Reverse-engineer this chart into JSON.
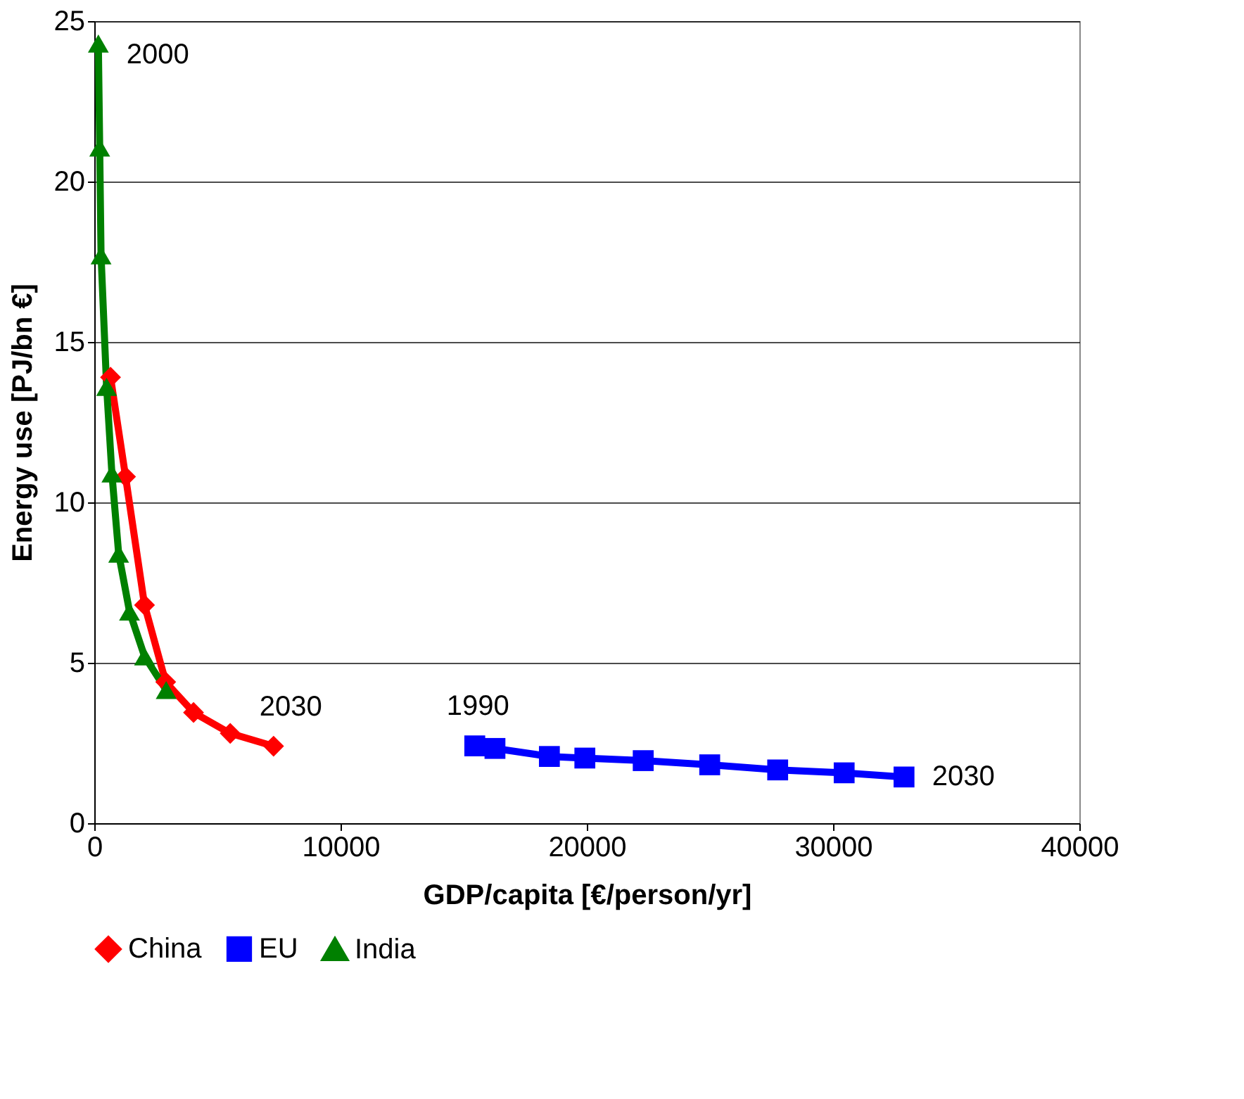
{
  "chart_data": {
    "type": "line",
    "xlabel": "GDP/capita [€/person/yr]",
    "ylabel": "Energy use [PJ/bn €]",
    "xlim": [
      0,
      40000
    ],
    "xticks": [
      0,
      10000,
      20000,
      30000,
      40000
    ],
    "ylim": [
      0,
      25
    ],
    "yticks": [
      0,
      5,
      10,
      15,
      20,
      25
    ],
    "grid": "y",
    "legend": "bottom",
    "series": [
      {
        "name": "China",
        "color": "#ff0000",
        "marker": "diamond",
        "x": [
          660,
          1270,
          2040,
          2900,
          4030,
          5520,
          7280
        ],
        "values": [
          13.9,
          10.8,
          6.8,
          4.4,
          3.45,
          2.8,
          2.4
        ]
      },
      {
        "name": "EU",
        "color": "#0000ff",
        "marker": "square",
        "x": [
          15450,
          16270,
          18480,
          19920,
          22290,
          24990,
          27750,
          30450,
          32880
        ],
        "values": [
          2.41,
          2.33,
          2.08,
          2.03,
          1.95,
          1.82,
          1.66,
          1.57,
          1.44
        ]
      },
      {
        "name": "India",
        "color": "#008000",
        "marker": "triangle",
        "x": [
          165,
          220,
          275,
          500,
          715,
          990,
          1430,
          2040,
          2920
        ],
        "values": [
          24.3,
          21.06,
          17.7,
          13.6,
          10.9,
          8.4,
          6.6,
          5.2,
          4.15
        ]
      }
    ],
    "annotations": [
      {
        "text": "2000",
        "x": 165,
        "y": 24.3
      },
      {
        "text": "2030",
        "x": 7280,
        "y": 2.4
      },
      {
        "text": "1990",
        "x": 15450,
        "y": 2.41
      },
      {
        "text": "2030",
        "x": 32880,
        "y": 1.44
      }
    ]
  }
}
